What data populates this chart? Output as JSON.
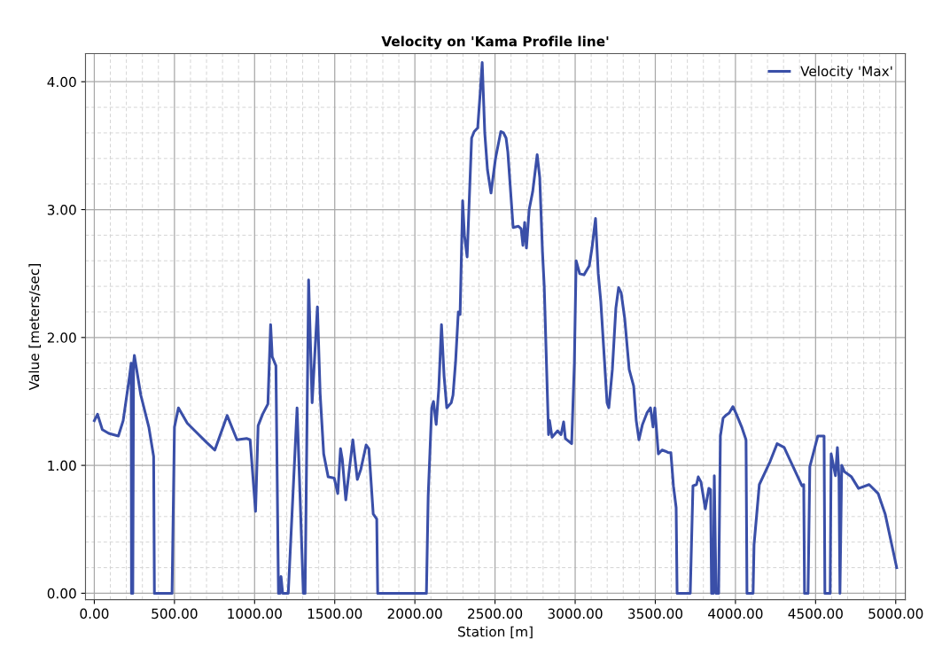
{
  "chart_data": {
    "type": "line",
    "title": "Velocity on 'Kama Profile line'",
    "xlabel": "Station [m]",
    "ylabel": "Value [meters/sec]",
    "xlim": [
      -55,
      5060
    ],
    "ylim": [
      -0.05,
      4.22
    ],
    "xticks": [
      {
        "value": 0,
        "label": "0.00"
      },
      {
        "value": 500,
        "label": "500.00"
      },
      {
        "value": 1000,
        "label": "1000.00"
      },
      {
        "value": 1500,
        "label": "1500.00"
      },
      {
        "value": 2000,
        "label": "2000.00"
      },
      {
        "value": 2500,
        "label": "2500.00"
      },
      {
        "value": 3000,
        "label": "3000.00"
      },
      {
        "value": 3500,
        "label": "3500.00"
      },
      {
        "value": 4000,
        "label": "4000.00"
      },
      {
        "value": 4500,
        "label": "4500.00"
      },
      {
        "value": 5000,
        "label": "5000.00"
      }
    ],
    "yticks": [
      {
        "value": 0,
        "label": "0.00"
      },
      {
        "value": 1,
        "label": "1.00"
      },
      {
        "value": 2,
        "label": "2.00"
      },
      {
        "value": 3,
        "label": "3.00"
      },
      {
        "value": 4,
        "label": "4.00"
      }
    ],
    "grid": true,
    "legend": "top right",
    "marker": "none",
    "line_style": "solid",
    "series": [
      {
        "name": "Velocity 'Max'",
        "color": "#3a4fa8",
        "x": [
          0,
          20,
          50,
          90,
          150,
          180,
          220,
          230,
          232,
          240,
          245,
          250,
          260,
          290,
          340,
          370,
          375,
          485,
          500,
          525,
          580,
          620,
          700,
          752,
          829,
          890,
          950,
          972,
          1006,
          1022,
          1050,
          1083,
          1100,
          1110,
          1133,
          1149,
          1160,
          1165,
          1175,
          1210,
          1265,
          1304,
          1315,
          1337,
          1359,
          1392,
          1409,
          1431,
          1459,
          1497,
          1519,
          1536,
          1547,
          1569,
          1580,
          1613,
          1641,
          1663,
          1696,
          1713,
          1740,
          1762,
          1768,
          2072,
          2083,
          2105,
          2116,
          2133,
          2149,
          2166,
          2182,
          2199,
          2227,
          2238,
          2254,
          2271,
          2282,
          2298,
          2309,
          2326,
          2337,
          2354,
          2370,
          2392,
          2409,
          2420,
          2436,
          2453,
          2475,
          2503,
          2536,
          2553,
          2569,
          2580,
          2613,
          2646,
          2663,
          2674,
          2685,
          2696,
          2713,
          2735,
          2763,
          2779,
          2796,
          2807,
          2834,
          2840,
          2856,
          2890,
          2912,
          2928,
          2939,
          2978,
          2995,
          3006,
          3028,
          3055,
          3088,
          3105,
          3127,
          3144,
          3160,
          3199,
          3210,
          3232,
          3254,
          3271,
          3287,
          3309,
          3337,
          3365,
          3381,
          3398,
          3420,
          3448,
          3470,
          3486,
          3497,
          3519,
          3542,
          3564,
          3580,
          3597,
          3613,
          3630,
          3636,
          3718,
          3735,
          3757,
          3768,
          3785,
          3812,
          3834,
          3845,
          3851,
          3862,
          3868,
          3879,
          3895,
          3906,
          3923,
          3939,
          3961,
          3984,
          4006,
          4039,
          4066,
          4072,
          4110,
          4116,
          4149,
          4216,
          4260,
          4304,
          4415,
          4426,
          4431,
          4453,
          4464,
          4514,
          4553,
          4558,
          4591,
          4597,
          4624,
          4636,
          4646,
          4652,
          4663,
          4680,
          4724,
          4768,
          4834,
          4890,
          4934,
          5006
        ],
        "values": [
          1.35,
          1.4,
          1.28,
          1.25,
          1.23,
          1.35,
          1.7,
          1.8,
          0,
          0,
          1.8,
          1.86,
          1.78,
          1.55,
          1.3,
          1.07,
          0,
          0,
          1.3,
          1.45,
          1.33,
          1.28,
          1.18,
          1.12,
          1.39,
          1.2,
          1.21,
          1.2,
          0.64,
          1.31,
          1.4,
          1.48,
          2.1,
          1.85,
          1.78,
          0,
          0,
          0.13,
          0,
          0,
          1.45,
          0,
          0,
          2.45,
          1.49,
          2.24,
          1.56,
          1.09,
          0.91,
          0.9,
          0.78,
          1.13,
          1.05,
          0.73,
          0.85,
          1.2,
          0.89,
          0.97,
          1.16,
          1.13,
          0.62,
          0.58,
          0,
          0,
          0.76,
          1.45,
          1.5,
          1.32,
          1.6,
          2.1,
          1.7,
          1.45,
          1.49,
          1.55,
          1.81,
          2.2,
          2.18,
          3.07,
          2.8,
          2.63,
          3.0,
          3.56,
          3.61,
          3.64,
          3.94,
          4.15,
          3.6,
          3.31,
          3.13,
          3.4,
          3.61,
          3.6,
          3.56,
          3.45,
          2.86,
          2.87,
          2.85,
          2.72,
          2.9,
          2.7,
          3.0,
          3.14,
          3.43,
          3.25,
          2.67,
          2.4,
          1.24,
          1.35,
          1.22,
          1.27,
          1.24,
          1.34,
          1.21,
          1.17,
          1.8,
          2.6,
          2.5,
          2.49,
          2.56,
          2.7,
          2.93,
          2.5,
          2.28,
          1.49,
          1.45,
          1.75,
          2.23,
          2.39,
          2.35,
          2.15,
          1.75,
          1.62,
          1.35,
          1.2,
          1.32,
          1.41,
          1.45,
          1.3,
          1.45,
          1.09,
          1.12,
          1.11,
          1.1,
          1.1,
          0.84,
          0.67,
          0,
          0,
          0.84,
          0.85,
          0.91,
          0.87,
          0.66,
          0.82,
          0.81,
          0,
          0,
          0.92,
          0,
          0,
          1.23,
          1.37,
          1.39,
          1.41,
          1.46,
          1.4,
          1.3,
          1.2,
          0,
          0,
          0.38,
          0.85,
          1.03,
          1.17,
          1.14,
          0.84,
          0.85,
          0,
          0,
          0.99,
          1.23,
          1.23,
          0,
          0,
          1.09,
          0.92,
          1.14,
          0.9,
          0,
          1.0,
          0.95,
          0.91,
          0.82,
          0.85,
          0.78,
          0.62,
          0.2
        ]
      }
    ]
  }
}
